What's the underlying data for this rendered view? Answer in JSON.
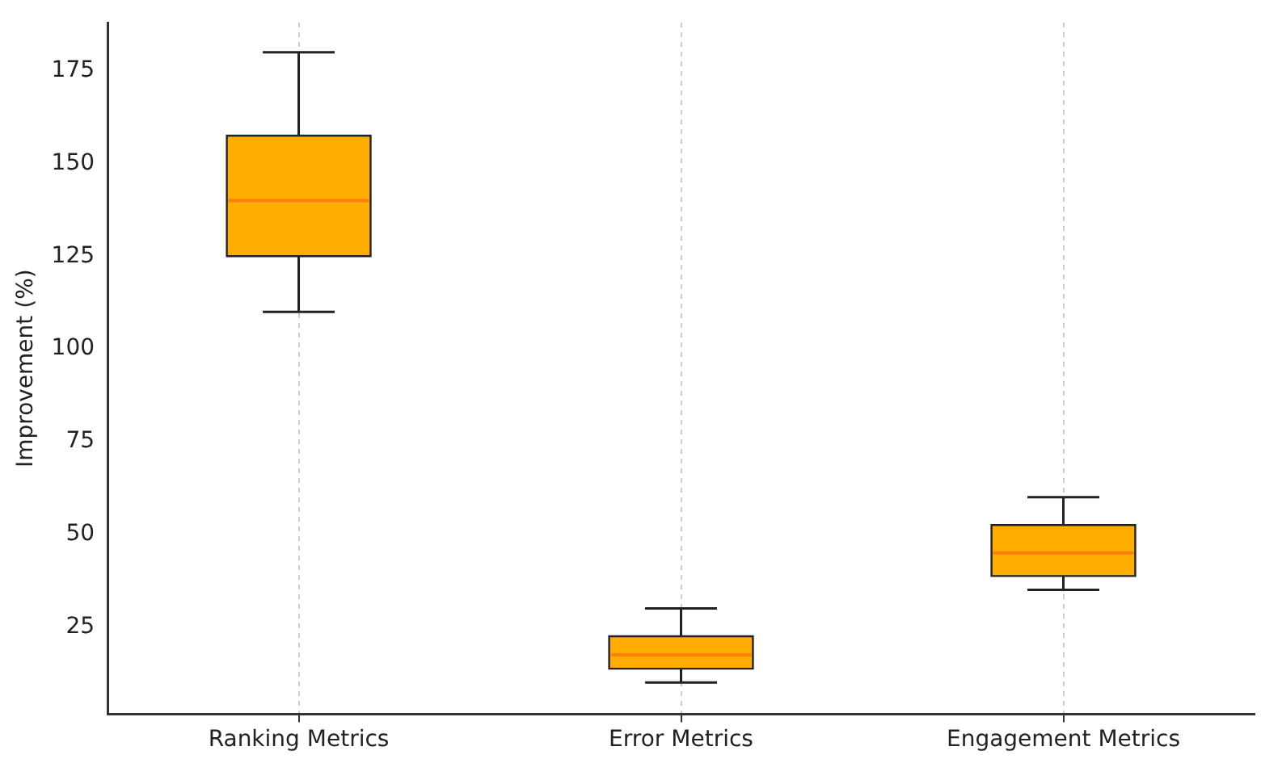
{
  "chart_data": {
    "type": "box",
    "ylabel": "Improvement (%)",
    "categories": [
      "Ranking Metrics",
      "Error Metrics",
      "Engagement Metrics"
    ],
    "series": [
      {
        "color": "#ffae00",
        "boxes": [
          {
            "low": 110,
            "q1": 125,
            "median": 140,
            "q3": 157.5,
            "high": 180
          },
          {
            "low": 10,
            "q1": 13.75,
            "median": 17.5,
            "q3": 22.5,
            "high": 30
          },
          {
            "low": 35,
            "q1": 38.75,
            "median": 45,
            "q3": 52.5,
            "high": 60
          }
        ]
      }
    ],
    "ylim": [
      1.5,
      188
    ],
    "yticks": [
      25,
      50,
      75,
      100,
      125,
      150,
      175
    ],
    "grid": "x",
    "legend": false
  }
}
